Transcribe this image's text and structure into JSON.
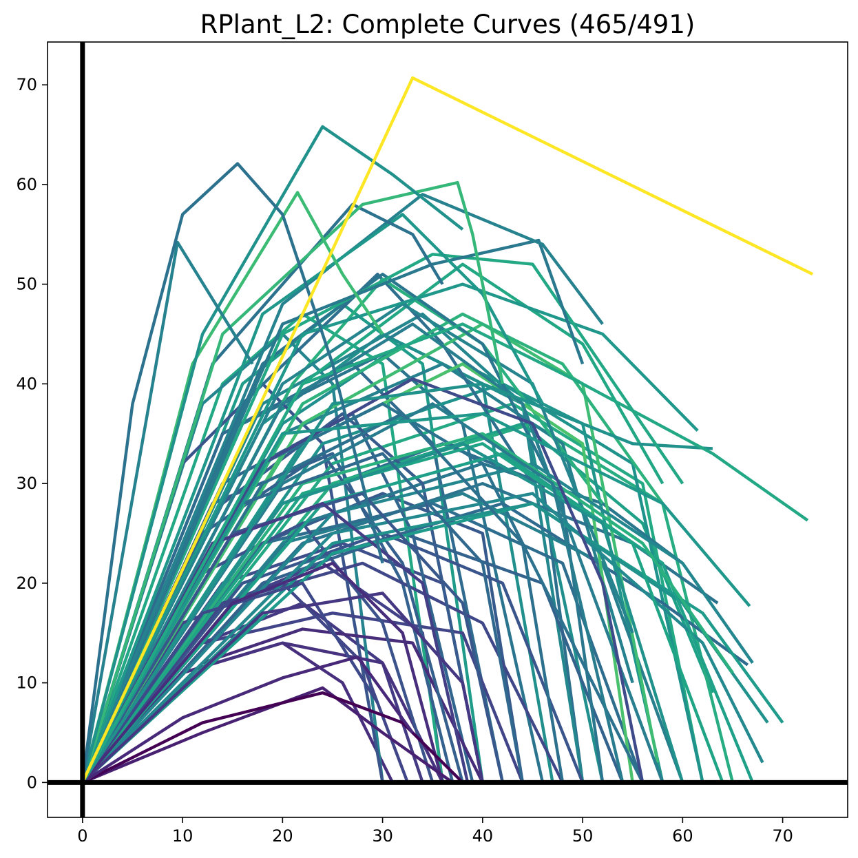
{
  "chart_data": {
    "type": "line",
    "title": "RPlant_L2: Complete Curves (465/491)",
    "xlabel": "",
    "ylabel": "",
    "xlim": [
      -3.5,
      76.5
    ],
    "ylim": [
      -3.5,
      74.3
    ],
    "x_ticks": [
      0,
      10,
      20,
      30,
      40,
      50,
      60,
      70
    ],
    "y_ticks": [
      0,
      10,
      20,
      30,
      40,
      50,
      60,
      70
    ],
    "grid": false,
    "legend": "none",
    "reference_lines": {
      "x": 0,
      "y": 0,
      "color": "#000000"
    },
    "colormap": "viridis",
    "series": [
      {
        "color": "#fde725",
        "x": [
          0,
          22,
          33,
          73
        ],
        "y": [
          0,
          47,
          70.7,
          51
        ]
      },
      {
        "color": "#2c728e",
        "x": [
          0,
          5,
          10,
          15.5,
          20,
          25,
          30
        ],
        "y": [
          0,
          38,
          57,
          62.1,
          57,
          42,
          22
        ]
      },
      {
        "color": "#26828e",
        "x": [
          0,
          9.5,
          17
        ],
        "y": [
          0,
          54.2,
          42
        ]
      },
      {
        "color": "#21918c",
        "x": [
          0,
          12,
          24,
          31,
          38
        ],
        "y": [
          0,
          45,
          65.8,
          61,
          55.5
        ]
      },
      {
        "color": "#3cbb75",
        "x": [
          0,
          11,
          21.5,
          26,
          30
        ],
        "y": [
          0,
          42,
          59.2,
          51,
          45
        ]
      },
      {
        "color": "#35b779",
        "x": [
          0,
          14,
          28,
          37.5,
          39,
          42
        ],
        "y": [
          0,
          45,
          58,
          60.2,
          55,
          40
        ]
      },
      {
        "color": "#2c728e",
        "x": [
          0,
          13,
          27,
          33,
          36
        ],
        "y": [
          0,
          42,
          58,
          55,
          50
        ]
      },
      {
        "color": "#1f988b",
        "x": [
          0,
          18,
          32,
          40,
          46
        ],
        "y": [
          0,
          47,
          57,
          49,
          38
        ]
      },
      {
        "color": "#26828e",
        "x": [
          0,
          20,
          34,
          46,
          52
        ],
        "y": [
          0,
          48,
          59,
          54,
          46
        ]
      },
      {
        "color": "#2a788e",
        "x": [
          0,
          20,
          35,
          45.6,
          50
        ],
        "y": [
          0,
          46,
          52,
          54.4,
          42
        ]
      },
      {
        "color": "#22a884",
        "x": [
          0,
          20,
          35,
          45,
          60
        ],
        "y": [
          0,
          45,
          53,
          52,
          30
        ]
      },
      {
        "color": "#1f988b",
        "x": [
          0,
          22,
          38,
          52,
          61.5
        ],
        "y": [
          0,
          45,
          50,
          45,
          35.3
        ]
      },
      {
        "color": "#22a884",
        "x": [
          0,
          22,
          38,
          50,
          63,
          72.5
        ],
        "y": [
          0,
          40,
          46,
          40,
          33,
          26.3
        ]
      },
      {
        "color": "#21918c",
        "x": [
          0,
          25,
          40,
          55,
          63
        ],
        "y": [
          0,
          38,
          40,
          34,
          33.5
        ]
      },
      {
        "color": "#1f988b",
        "x": [
          0,
          20,
          40,
          58,
          66.7
        ],
        "y": [
          0,
          35,
          37,
          28,
          17.7
        ]
      },
      {
        "color": "#3e4a89",
        "x": [
          0,
          18,
          33,
          45,
          52,
          56
        ],
        "y": [
          0,
          32,
          40.5,
          36,
          20,
          0
        ]
      },
      {
        "color": "#433e85",
        "x": [
          0,
          13,
          24,
          34,
          38.5
        ],
        "y": [
          0,
          24,
          28,
          20,
          0
        ]
      },
      {
        "color": "#482878",
        "x": [
          0,
          10,
          20,
          27.5,
          33
        ],
        "y": [
          0,
          6.5,
          10.5,
          12.6,
          5
        ]
      },
      {
        "color": "#440154",
        "x": [
          0,
          12,
          24,
          32,
          38
        ],
        "y": [
          0,
          6,
          9,
          6,
          0
        ]
      },
      {
        "color": "#482071",
        "x": [
          0,
          12,
          24,
          30,
          37
        ],
        "y": [
          0,
          5,
          9.5,
          5,
          0
        ]
      },
      {
        "color": "#472d7b",
        "x": [
          0,
          15,
          25,
          32,
          36
        ],
        "y": [
          0,
          18,
          22,
          15,
          0
        ]
      },
      {
        "color": "#453781",
        "x": [
          0,
          18,
          30,
          38,
          40
        ],
        "y": [
          0,
          17,
          19,
          10,
          0
        ]
      },
      {
        "color": "#3e4989",
        "x": [
          0,
          12,
          22,
          29.5
        ],
        "y": [
          0,
          17,
          20,
          8
        ]
      },
      {
        "color": "#38588c",
        "x": [
          0,
          15,
          28,
          38,
          42
        ],
        "y": [
          0,
          25,
          29,
          18,
          0
        ]
      },
      {
        "color": "#31688e",
        "x": [
          0,
          16,
          30,
          40,
          44
        ],
        "y": [
          0,
          28,
          33,
          22,
          0
        ]
      },
      {
        "color": "#2d708e",
        "x": [
          0,
          18,
          32,
          44,
          48
        ],
        "y": [
          0,
          30,
          37,
          24,
          0
        ]
      },
      {
        "color": "#287c8e",
        "x": [
          0,
          20,
          35,
          47,
          54
        ],
        "y": [
          0,
          30,
          38,
          30,
          0
        ]
      },
      {
        "color": "#21918c",
        "x": [
          0,
          20,
          38,
          52,
          60
        ],
        "y": [
          0,
          28,
          34,
          26,
          0
        ]
      },
      {
        "color": "#20a486",
        "x": [
          0,
          22,
          40,
          55,
          64
        ],
        "y": [
          0,
          29,
          34,
          24,
          0
        ]
      },
      {
        "color": "#2ab07f",
        "x": [
          0,
          22,
          40,
          56,
          65
        ],
        "y": [
          0,
          30,
          35,
          24,
          11
        ]
      },
      {
        "color": "#1fa088",
        "x": [
          0,
          24,
          42,
          58,
          67
        ],
        "y": [
          0,
          28,
          33,
          22,
          0
        ]
      },
      {
        "color": "#24868e",
        "x": [
          0,
          25,
          45,
          60,
          67
        ],
        "y": [
          0,
          27,
          32,
          22,
          12
        ]
      },
      {
        "color": "#23898e",
        "x": [
          0,
          25,
          45,
          62,
          68
        ],
        "y": [
          0,
          25,
          29,
          14,
          2
        ]
      },
      {
        "color": "#21918c",
        "x": [
          0,
          25,
          45,
          60,
          68.5
        ],
        "y": [
          0,
          24,
          28,
          18,
          6
        ]
      },
      {
        "color": "#1e9b8a",
        "x": [
          0,
          25,
          45,
          62,
          70
        ],
        "y": [
          0,
          23,
          28,
          17,
          6
        ]
      },
      {
        "color": "#2c728e",
        "x": [
          0,
          18,
          30,
          40,
          56
        ],
        "y": [
          0,
          32,
          38,
          32,
          0
        ]
      },
      {
        "color": "#287d8e",
        "x": [
          0,
          20,
          33,
          44,
          58
        ],
        "y": [
          0,
          38,
          46,
          38,
          0
        ]
      },
      {
        "color": "#2a768e",
        "x": [
          0,
          18,
          30,
          40,
          48,
          52
        ],
        "y": [
          0,
          42,
          51,
          44,
          28,
          0
        ]
      },
      {
        "color": "#25848e",
        "x": [
          0,
          20,
          32,
          45,
          55
        ],
        "y": [
          0,
          40,
          48,
          40,
          15
        ]
      },
      {
        "color": "#22a785",
        "x": [
          0,
          22,
          38,
          50,
          58
        ],
        "y": [
          0,
          40,
          52,
          44,
          30
        ]
      },
      {
        "color": "#2db27d",
        "x": [
          0,
          22,
          38,
          48,
          58
        ],
        "y": [
          0,
          38,
          47,
          42,
          28
        ]
      },
      {
        "color": "#3fbc73",
        "x": [
          0,
          22,
          40,
          50,
          57.5
        ],
        "y": [
          0,
          36,
          46,
          40,
          2
        ]
      },
      {
        "color": "#4ac16d",
        "x": [
          0,
          20,
          38,
          50,
          55
        ],
        "y": [
          0,
          33,
          42,
          34,
          0
        ]
      },
      {
        "color": "#29af7f",
        "x": [
          0,
          21,
          30,
          40,
          52
        ],
        "y": [
          0,
          40,
          50.5,
          44,
          28
        ]
      },
      {
        "color": "#2e6e8e",
        "x": [
          0,
          16,
          29.5,
          36,
          45
        ],
        "y": [
          0,
          38,
          51,
          44,
          30
        ]
      },
      {
        "color": "#375b8d",
        "x": [
          0,
          14,
          26,
          34,
          40
        ],
        "y": [
          0,
          28,
          37,
          30,
          0
        ]
      },
      {
        "color": "#355f8d",
        "x": [
          0,
          12,
          24,
          32,
          38
        ],
        "y": [
          0,
          25,
          33,
          22,
          0
        ]
      },
      {
        "color": "#3b528b",
        "x": [
          0,
          12,
          22,
          30,
          35
        ],
        "y": [
          0,
          21,
          26,
          16,
          0
        ]
      },
      {
        "color": "#404688",
        "x": [
          0,
          10,
          20,
          28,
          32.5
        ],
        "y": [
          0,
          16,
          20,
          12,
          0
        ]
      },
      {
        "color": "#46327e",
        "x": [
          0,
          10,
          20,
          30,
          36
        ],
        "y": [
          0,
          11,
          14,
          12,
          0
        ]
      },
      {
        "color": "#472c7a",
        "x": [
          0,
          12,
          22,
          33,
          40
        ],
        "y": [
          0,
          12,
          15.4,
          14,
          0
        ]
      },
      {
        "color": "#414487",
        "x": [
          0,
          12,
          25,
          38,
          44
        ],
        "y": [
          0,
          14,
          17,
          15,
          0
        ]
      },
      {
        "color": "#3f4788",
        "x": [
          0,
          14,
          28,
          40,
          48
        ],
        "y": [
          0,
          18,
          22,
          16,
          0
        ]
      },
      {
        "color": "#3a548c",
        "x": [
          0,
          16,
          30,
          42,
          50
        ],
        "y": [
          0,
          20,
          25,
          20,
          0
        ]
      },
      {
        "color": "#33628d",
        "x": [
          0,
          18,
          32,
          46,
          54
        ],
        "y": [
          0,
          20,
          25,
          20,
          0
        ]
      },
      {
        "color": "#2e6d8e",
        "x": [
          0,
          18,
          35,
          48,
          56
        ],
        "y": [
          0,
          24,
          28,
          22,
          0
        ]
      },
      {
        "color": "#277f8e",
        "x": [
          0,
          20,
          38,
          52,
          60
        ],
        "y": [
          0,
          24,
          29,
          22,
          0
        ]
      },
      {
        "color": "#2a788e",
        "x": [
          0,
          22,
          40,
          52,
          60
        ],
        "y": [
          0,
          26,
          32,
          28,
          22
        ]
      },
      {
        "color": "#2c738e",
        "x": [
          0,
          22,
          40,
          55,
          63.5
        ],
        "y": [
          0,
          24,
          30,
          24,
          18
        ]
      },
      {
        "color": "#2f6b8e",
        "x": [
          0,
          22,
          42,
          58,
          66.5
        ],
        "y": [
          0,
          22,
          28,
          18,
          11.8
        ]
      },
      {
        "color": "#26818e",
        "x": [
          0,
          20,
          36,
          48,
          55
        ],
        "y": [
          0,
          35,
          42,
          34,
          10
        ]
      },
      {
        "color": "#1f958b",
        "x": [
          0,
          22,
          38,
          50,
          58
        ],
        "y": [
          0,
          34,
          42,
          36,
          0
        ]
      },
      {
        "color": "#20928c",
        "x": [
          0,
          24,
          42,
          55,
          62
        ],
        "y": [
          0,
          34,
          40,
          32,
          0
        ]
      },
      {
        "color": "#23a983",
        "x": [
          0,
          25,
          43,
          56,
          62
        ],
        "y": [
          0,
          32,
          38,
          30,
          0
        ]
      },
      {
        "color": "#27ad81",
        "x": [
          0,
          25,
          45,
          58,
          65
        ],
        "y": [
          0,
          30,
          36,
          28,
          0
        ]
      },
      {
        "color": "#1fa187",
        "x": [
          0,
          25,
          44,
          56,
          63
        ],
        "y": [
          0,
          30,
          36,
          26,
          9
        ]
      },
      {
        "color": "#24878e",
        "x": [
          0,
          18,
          34,
          44,
          50
        ],
        "y": [
          0,
          38,
          47,
          38,
          0
        ]
      },
      {
        "color": "#2b748e",
        "x": [
          0,
          16,
          30,
          38,
          46
        ],
        "y": [
          0,
          36,
          43,
          36,
          0
        ]
      },
      {
        "color": "#306a8e",
        "x": [
          0,
          14,
          27,
          35,
          42
        ],
        "y": [
          0,
          35,
          42,
          34,
          0
        ]
      },
      {
        "color": "#32658e",
        "x": [
          0,
          14,
          27,
          33,
          39
        ],
        "y": [
          0,
          30,
          37,
          25,
          0
        ]
      },
      {
        "color": "#34618d",
        "x": [
          0,
          13,
          25,
          32,
          37
        ],
        "y": [
          0,
          28,
          33,
          20,
          0
        ]
      },
      {
        "color": "#39558c",
        "x": [
          0,
          10,
          18,
          24,
          30
        ],
        "y": [
          0,
          32,
          40,
          34,
          0
        ]
      },
      {
        "color": "#25848e",
        "x": [
          0,
          12,
          20,
          25,
          30
        ],
        "y": [
          0,
          38,
          45,
          40,
          0
        ]
      },
      {
        "color": "#22a884",
        "x": [
          0,
          14,
          22,
          30,
          36
        ],
        "y": [
          0,
          40,
          47,
          42,
          0
        ]
      },
      {
        "color": "#1e9c89",
        "x": [
          0,
          16,
          26,
          34,
          40
        ],
        "y": [
          0,
          40,
          48,
          42,
          0
        ]
      },
      {
        "color": "#21908d",
        "x": [
          0,
          18,
          30,
          40,
          47
        ],
        "y": [
          0,
          36,
          45,
          40,
          0
        ]
      },
      {
        "color": "#218f8d",
        "x": [
          0,
          20,
          32,
          44,
          52
        ],
        "y": [
          0,
          36,
          44,
          38,
          0
        ]
      },
      {
        "color": "#2e6f8e",
        "x": [
          0,
          20,
          36,
          46,
          50
        ],
        "y": [
          0,
          28,
          34,
          30,
          0
        ]
      },
      {
        "color": "#375a8c",
        "x": [
          0,
          18,
          30,
          40,
          44
        ],
        "y": [
          0,
          24,
          29,
          25,
          0
        ]
      },
      {
        "color": "#3d4e8a",
        "x": [
          0,
          14,
          26,
          36,
          40
        ],
        "y": [
          0,
          20,
          24,
          20,
          0
        ]
      },
      {
        "color": "#424086",
        "x": [
          0,
          12,
          24,
          34,
          36
        ],
        "y": [
          0,
          17,
          22,
          15,
          0
        ]
      },
      {
        "color": "#443983",
        "x": [
          0,
          12,
          22,
          30,
          34
        ],
        "y": [
          0,
          14,
          18,
          12,
          0
        ]
      },
      {
        "color": "#472f7d",
        "x": [
          0,
          10,
          20,
          26,
          31
        ],
        "y": [
          0,
          11,
          14,
          10,
          0
        ]
      }
    ]
  }
}
